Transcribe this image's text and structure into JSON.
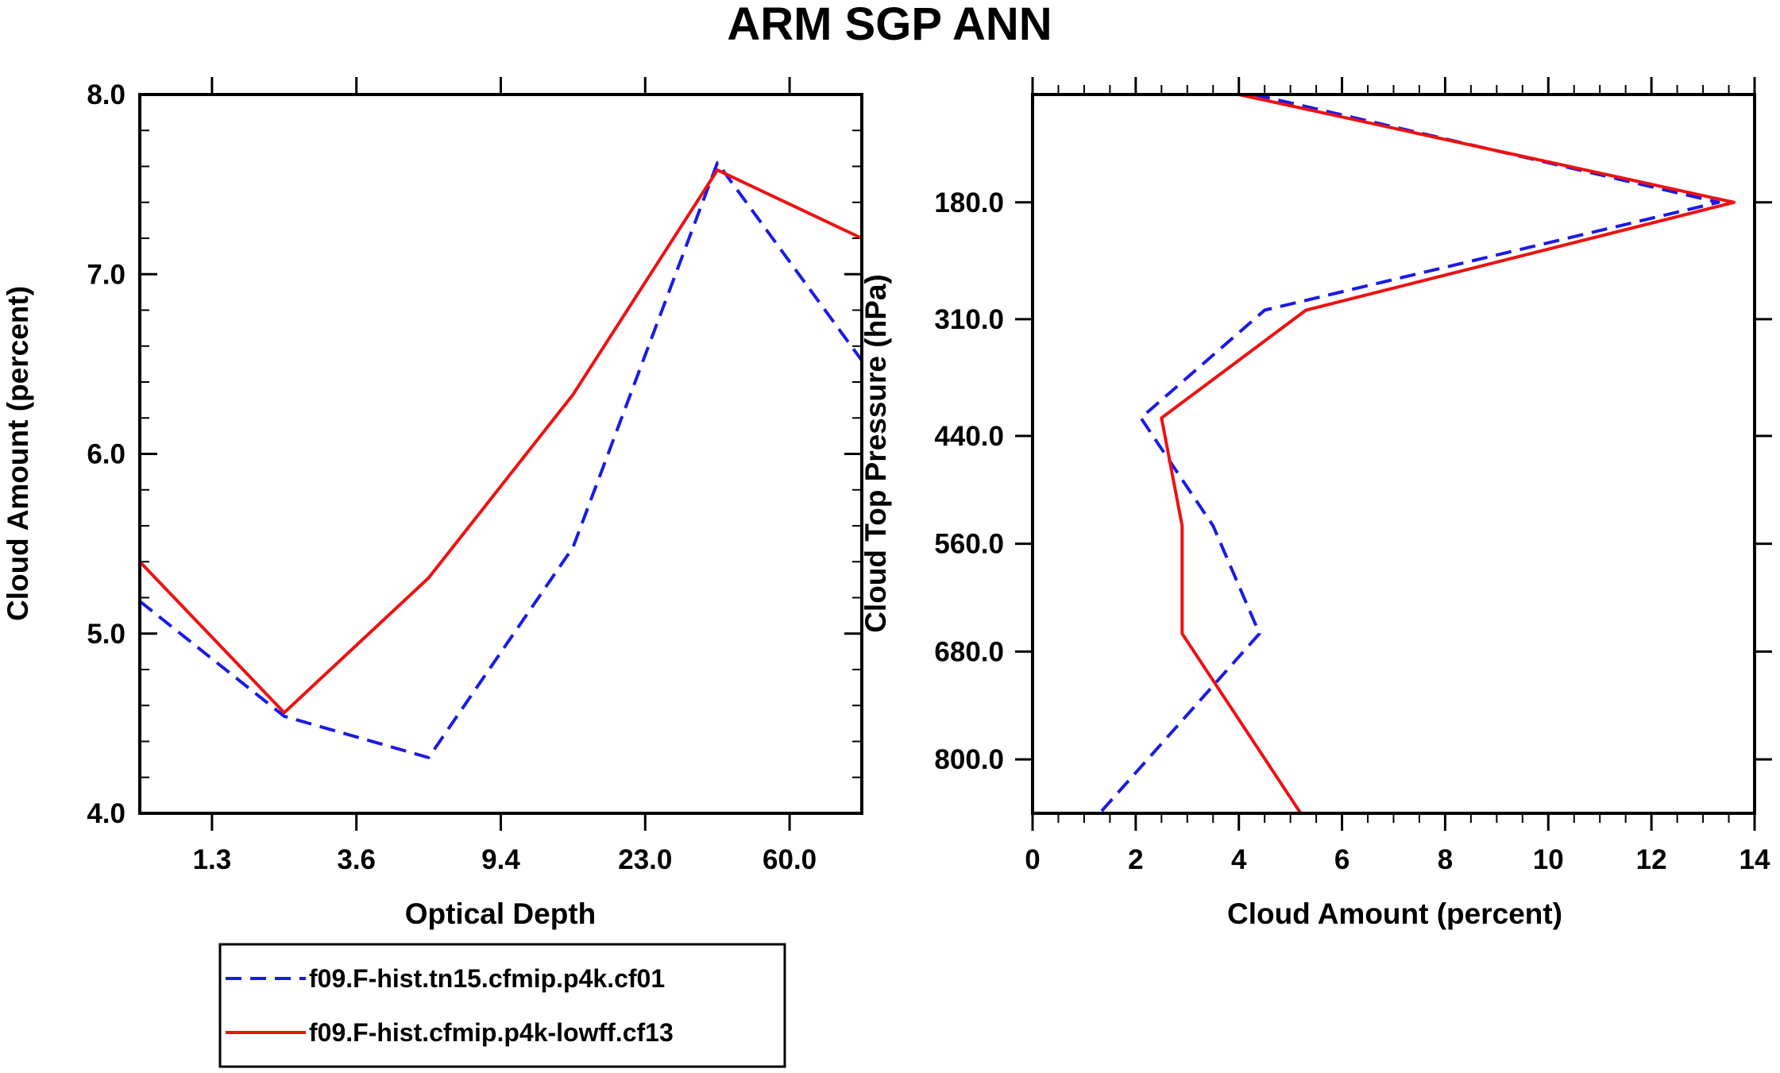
{
  "chart_data": [
    {
      "type": "line",
      "title": "ARM SGP ANN",
      "xlabel": "Optical Depth",
      "ylabel": "Cloud Amount (percent)",
      "x_tick_labels": [
        "1.3",
        "3.6",
        "9.4",
        "23.0",
        "60.0"
      ],
      "x_tick_positions": [
        1,
        2,
        3,
        4,
        5
      ],
      "xlim": [
        0.5,
        5.5
      ],
      "ylim": [
        4.0,
        8.0
      ],
      "y_ticks": [
        4.0,
        5.0,
        6.0,
        7.0,
        8.0
      ],
      "y_tick_labels": [
        "4.0",
        "5.0",
        "6.0",
        "7.0",
        "8.0"
      ],
      "x": [
        0.5,
        1.5,
        2.5,
        3.5,
        4.5,
        5.5
      ],
      "series": [
        {
          "name": "f09.F-hist.tn15.cfmip.p4k.cf01",
          "color": "#1a1ae6",
          "dash": "dashed",
          "values": [
            5.18,
            4.54,
            4.31,
            5.48,
            7.62,
            6.52
          ]
        },
        {
          "name": "f09.F-hist.cfmip.p4k-lowff.cf13",
          "color": "#ee1111",
          "dash": "solid",
          "values": [
            5.4,
            4.56,
            5.31,
            6.33,
            7.58,
            7.2
          ]
        }
      ]
    },
    {
      "type": "line",
      "xlabel": "Cloud Amount (percent)",
      "ylabel": "Cloud Top Pressure (hPa)",
      "xlim": [
        0,
        14
      ],
      "x_ticks": [
        0,
        2,
        4,
        6,
        8,
        10,
        12,
        14
      ],
      "x_tick_labels": [
        "0",
        "2",
        "4",
        "6",
        "8",
        "10",
        "12",
        "14"
      ],
      "ylim": [
        860,
        60
      ],
      "y_ticks": [
        180,
        310,
        440,
        560,
        680,
        800
      ],
      "y_tick_labels": [
        "180.0",
        "310.0",
        "440.0",
        "560.0",
        "680.0",
        "800.0"
      ],
      "pressure_levels": [
        60,
        180,
        300,
        420,
        540,
        660,
        780,
        860
      ],
      "series": [
        {
          "name": "f09.F-hist.tn15.cfmip.p4k.cf01",
          "color": "#1a1ae6",
          "dash": "dashed",
          "values": [
            4.3,
            13.3,
            4.5,
            2.1,
            3.5,
            4.4,
            1.3
          ]
        },
        {
          "name": "f09.F-hist.cfmip.p4k-lowff.cf13",
          "color": "#ee1111",
          "dash": "solid",
          "values": [
            4.0,
            13.6,
            5.3,
            2.5,
            2.9,
            2.9,
            5.2
          ]
        }
      ]
    }
  ],
  "legend": {
    "items": [
      {
        "label": "f09.F-hist.tn15.cfmip.p4k.cf01",
        "color": "#1a1ae6",
        "dash": "dashed"
      },
      {
        "label": "f09.F-hist.cfmip.p4k-lowff.cf13",
        "color": "#ee1111",
        "dash": "solid"
      }
    ]
  }
}
